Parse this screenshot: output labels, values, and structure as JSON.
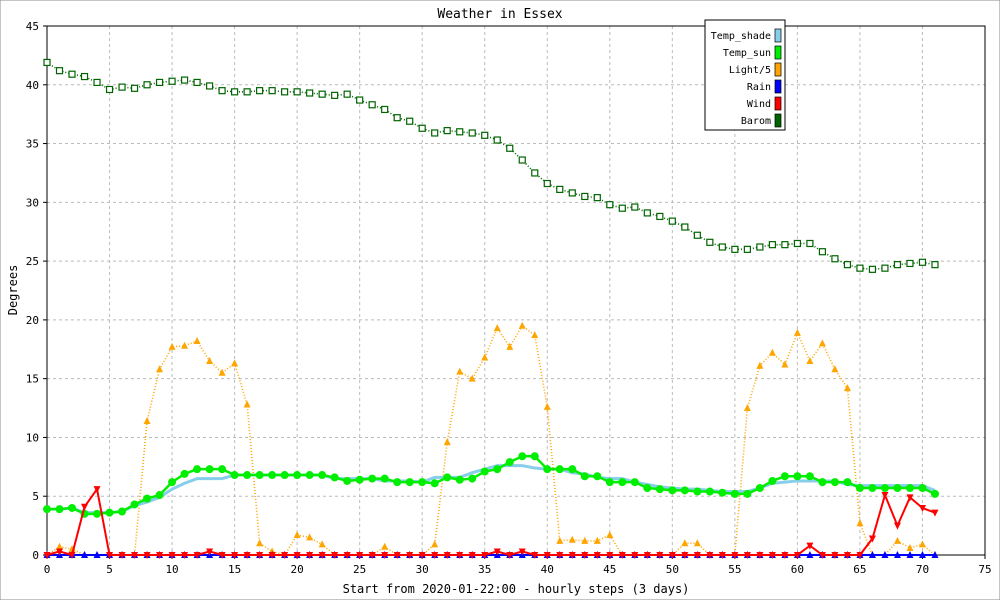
{
  "chart_data": {
    "type": "line",
    "title": "Weather in Essex",
    "xlabel": "Start from 2020-01-22:00 - hourly steps (3 days)",
    "ylabel": "Degrees",
    "xlim": [
      0,
      75
    ],
    "ylim": [
      0,
      45
    ],
    "x_ticks": [
      0,
      5,
      10,
      15,
      20,
      25,
      30,
      35,
      40,
      45,
      50,
      55,
      60,
      65,
      70,
      75
    ],
    "y_ticks": [
      0,
      5,
      10,
      15,
      20,
      25,
      30,
      35,
      40,
      45
    ],
    "grid": true,
    "legend_position": "top-right",
    "x": [
      0,
      1,
      2,
      3,
      4,
      5,
      6,
      7,
      8,
      9,
      10,
      11,
      12,
      13,
      14,
      15,
      16,
      17,
      18,
      19,
      20,
      21,
      22,
      23,
      24,
      25,
      26,
      27,
      28,
      29,
      30,
      31,
      32,
      33,
      34,
      35,
      36,
      37,
      38,
      39,
      40,
      41,
      42,
      43,
      44,
      45,
      46,
      47,
      48,
      49,
      50,
      51,
      52,
      53,
      54,
      55,
      56,
      57,
      58,
      59,
      60,
      61,
      62,
      63,
      64,
      65,
      66,
      67,
      68,
      69,
      70,
      71
    ],
    "series": [
      {
        "name": "Temp_shade",
        "color": "#87ceeb",
        "marker": "none",
        "style": "solid",
        "values": [
          3.9,
          3.9,
          4.0,
          3.6,
          3.6,
          3.6,
          3.7,
          4.2,
          4.5,
          4.9,
          5.6,
          6.1,
          6.5,
          6.5,
          6.5,
          6.8,
          6.8,
          6.8,
          6.8,
          6.8,
          6.8,
          6.8,
          6.8,
          6.5,
          6.5,
          6.5,
          6.5,
          6.3,
          6.3,
          6.3,
          6.2,
          6.6,
          6.6,
          6.6,
          7.0,
          7.3,
          7.6,
          7.6,
          7.6,
          7.4,
          7.3,
          7.3,
          7.0,
          6.9,
          6.6,
          6.5,
          6.5,
          6.2,
          6.0,
          5.8,
          5.7,
          5.6,
          5.6,
          5.5,
          5.4,
          5.4,
          5.4,
          5.7,
          6.1,
          6.2,
          6.3,
          6.3,
          6.3,
          6.3,
          6.0,
          5.9,
          5.9,
          5.9,
          5.9,
          5.9,
          5.9,
          5.5
        ]
      },
      {
        "name": "Temp_sun",
        "color": "#00ee00",
        "marker": "circle",
        "style": "solid",
        "values": [
          3.9,
          3.9,
          4.0,
          3.5,
          3.5,
          3.6,
          3.7,
          4.3,
          4.8,
          5.1,
          6.2,
          6.9,
          7.3,
          7.3,
          7.3,
          6.8,
          6.8,
          6.8,
          6.8,
          6.8,
          6.8,
          6.8,
          6.8,
          6.6,
          6.3,
          6.4,
          6.5,
          6.5,
          6.2,
          6.2,
          6.2,
          6.1,
          6.6,
          6.4,
          6.5,
          7.1,
          7.3,
          7.9,
          8.4,
          8.4,
          7.3,
          7.3,
          7.3,
          6.7,
          6.7,
          6.2,
          6.2,
          6.2,
          5.7,
          5.6,
          5.5,
          5.5,
          5.4,
          5.4,
          5.3,
          5.2,
          5.2,
          5.7,
          6.3,
          6.7,
          6.7,
          6.7,
          6.2,
          6.2,
          6.2,
          5.7,
          5.7,
          5.7,
          5.7,
          5.7,
          5.7,
          5.2
        ]
      },
      {
        "name": "Light/5",
        "color": "#ffa500",
        "marker": "triangle",
        "style": "dotted",
        "values": [
          0,
          0.7,
          0.5,
          0,
          0,
          0,
          0,
          0,
          11.4,
          15.8,
          17.7,
          17.8,
          18.2,
          16.5,
          15.5,
          16.3,
          12.8,
          1.0,
          0.3,
          0,
          1.7,
          1.5,
          0.9,
          0,
          0,
          0,
          0,
          0.7,
          0,
          0,
          0,
          0.9,
          9.6,
          15.6,
          15.0,
          16.8,
          19.3,
          17.7,
          19.5,
          18.7,
          12.6,
          1.2,
          1.3,
          1.2,
          1.2,
          1.7,
          0,
          0,
          0,
          0,
          0,
          1.0,
          1.0,
          0,
          0,
          0,
          12.5,
          16.1,
          17.2,
          16.2,
          18.9,
          16.5,
          18.0,
          15.8,
          14.2,
          2.7,
          0,
          0,
          1.2,
          0.6,
          0.9,
          0
        ]
      },
      {
        "name": "Rain",
        "color": "#0000ff",
        "marker": "triangle",
        "style": "solid",
        "values": [
          0,
          0,
          0,
          0,
          0,
          0,
          0,
          0,
          0,
          0,
          0,
          0,
          0,
          0,
          0,
          0,
          0,
          0,
          0,
          0,
          0,
          0,
          0,
          0,
          0,
          0,
          0,
          0,
          0,
          0,
          0,
          0,
          0,
          0,
          0,
          0,
          0,
          0,
          0,
          0,
          0,
          0,
          0,
          0,
          0,
          0,
          0,
          0,
          0,
          0,
          0,
          0,
          0,
          0,
          0,
          0,
          0,
          0,
          0,
          0,
          0,
          0,
          0,
          0,
          0,
          0,
          0,
          0,
          0,
          0,
          0,
          0
        ]
      },
      {
        "name": "Wind",
        "color": "#ff0000",
        "marker": "triangle-down",
        "style": "solid",
        "values": [
          0,
          0.3,
          0,
          4.1,
          5.6,
          0,
          0,
          0,
          0,
          0,
          0,
          0,
          0,
          0.3,
          0,
          0,
          0,
          0,
          0,
          0,
          0,
          0,
          0,
          0,
          0,
          0,
          0,
          0,
          0,
          0,
          0,
          0,
          0,
          0,
          0,
          0,
          0.3,
          0,
          0.3,
          0,
          0,
          0,
          0,
          0,
          0,
          0,
          0,
          0,
          0,
          0,
          0,
          0,
          0,
          0,
          0,
          0,
          0,
          0,
          0,
          0,
          0,
          0.8,
          0,
          0,
          0,
          0,
          1.4,
          5.1,
          2.5,
          4.9,
          4.0,
          3.6
        ]
      },
      {
        "name": "Barom",
        "color": "#006400",
        "marker": "square",
        "style": "dotted",
        "values": [
          41.9,
          41.2,
          40.9,
          40.7,
          40.2,
          39.6,
          39.8,
          39.7,
          40.0,
          40.2,
          40.3,
          40.4,
          40.2,
          39.9,
          39.5,
          39.4,
          39.4,
          39.5,
          39.5,
          39.4,
          39.4,
          39.3,
          39.2,
          39.1,
          39.2,
          38.7,
          38.3,
          37.9,
          37.2,
          36.9,
          36.3,
          35.9,
          36.1,
          36.0,
          35.9,
          35.7,
          35.3,
          34.6,
          33.6,
          32.5,
          31.6,
          31.1,
          30.8,
          30.5,
          30.4,
          29.8,
          29.5,
          29.6,
          29.1,
          28.8,
          28.4,
          27.9,
          27.2,
          26.6,
          26.2,
          26.0,
          26.0,
          26.2,
          26.4,
          26.4,
          26.5,
          26.5,
          25.8,
          25.2,
          24.7,
          24.4,
          24.3,
          24.4,
          24.7,
          24.8,
          24.9,
          24.7
        ]
      }
    ]
  }
}
